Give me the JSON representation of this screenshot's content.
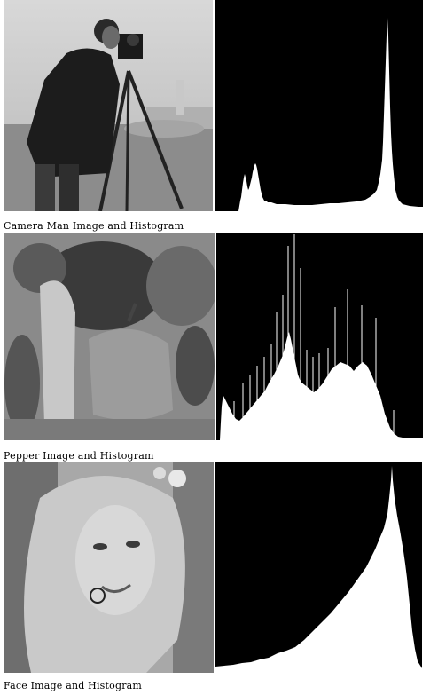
{
  "figures": [
    {
      "caption": "Camera Man Image and Histogram",
      "image_icon": "cameraman-photo",
      "histogram_color": "#ffffff"
    },
    {
      "caption": "Pepper Image and Histogram",
      "image_icon": "peppers-photo",
      "histogram_color": "#ffffff"
    },
    {
      "caption": "Face Image and Histogram",
      "image_icon": "face-portrait-photo",
      "histogram_color": "#ffffff"
    }
  ]
}
